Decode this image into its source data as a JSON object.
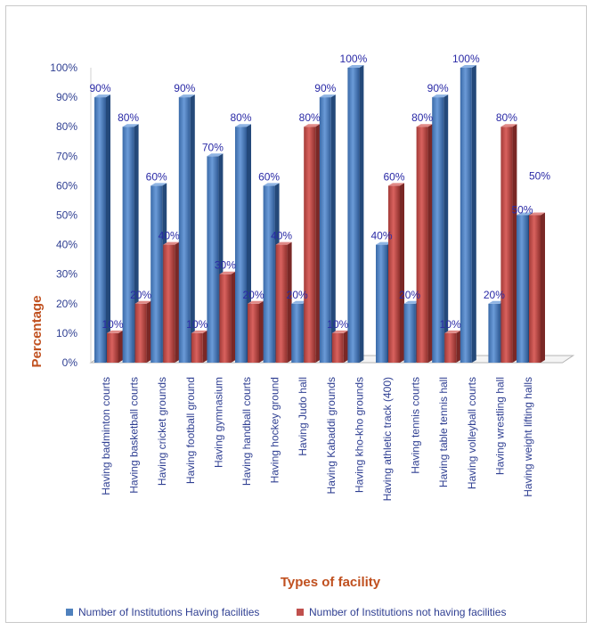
{
  "chart_data": {
    "type": "bar",
    "xlabel": "Types of facility",
    "ylabel": "Percentage",
    "ylim": [
      0,
      100
    ],
    "yticks": [
      "0%",
      "10%",
      "20%",
      "30%",
      "40%",
      "50%",
      "60%",
      "70%",
      "80%",
      "90%",
      "100%"
    ],
    "categories": [
      "Having badminton  courts",
      "Having basketball courts",
      "Having cricket grounds",
      "Having football ground",
      "Having gymnasium",
      "Having handball courts",
      "Having hockey ground",
      "Having Judo hall",
      "Having Kabaddi grounds",
      "Having kho-kho grounds",
      "Having athletic  track (400)",
      "Having tennis courts",
      "Having table tennis hall",
      "Having volleyball courts",
      "Having wrestling hall",
      "Having weight lifting halls"
    ],
    "series": [
      {
        "name": "Number of Institutions  Having facilities",
        "color": "#4f81bd",
        "values": [
          90,
          80,
          60,
          90,
          70,
          80,
          60,
          20,
          90,
          100,
          40,
          20,
          90,
          100,
          20,
          50
        ],
        "labels": [
          "90%",
          "80%",
          "60%",
          "90%",
          "70%",
          "80%",
          "60%",
          "20%",
          "90%",
          "100%",
          "40%",
          "20%",
          "90%",
          "100%",
          "20%",
          "50%"
        ]
      },
      {
        "name": "Number of Institutions  not having facilities",
        "color": "#c0504d",
        "values": [
          10,
          20,
          40,
          10,
          30,
          20,
          40,
          80,
          10,
          0,
          60,
          80,
          10,
          0,
          80,
          50
        ],
        "labels": [
          "10%",
          "20%",
          "40%",
          "10%",
          "30%",
          "20%",
          "40%",
          "80%",
          "10%",
          "",
          "60%",
          "80%",
          "10%",
          "",
          "80%",
          "50%"
        ]
      }
    ],
    "legend_position": "bottom",
    "grid": false
  }
}
